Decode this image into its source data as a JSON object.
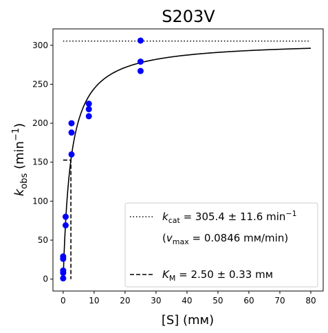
{
  "chart_data": {
    "type": "scatter",
    "title": "S203V",
    "xlabel": "[S] (mм)",
    "ylabel_main": "k",
    "ylabel_sub": "obs",
    "ylabel_unit_prefix": " (min",
    "ylabel_unit_sup": "−1",
    "ylabel_unit_suffix": ")",
    "xlim": [
      -3.3,
      84.0
    ],
    "ylim": [
      -15.3,
      321.0
    ],
    "xticks": [
      0,
      10,
      20,
      30,
      40,
      50,
      60,
      70,
      80
    ],
    "yticks": [
      0,
      50,
      100,
      150,
      200,
      250,
      300
    ],
    "grid": false,
    "legend_position": "lower right",
    "points_color": "#0000ff",
    "points": [
      {
        "x": 0,
        "y": 1
      },
      {
        "x": 0,
        "y": 8
      },
      {
        "x": 0,
        "y": 11
      },
      {
        "x": 0,
        "y": 26
      },
      {
        "x": 0,
        "y": 29
      },
      {
        "x": 0.8,
        "y": 69
      },
      {
        "x": 0.8,
        "y": 80
      },
      {
        "x": 2.7,
        "y": 160
      },
      {
        "x": 2.7,
        "y": 188
      },
      {
        "x": 2.7,
        "y": 200
      },
      {
        "x": 8.3,
        "y": 209
      },
      {
        "x": 8.3,
        "y": 218
      },
      {
        "x": 8.3,
        "y": 225
      },
      {
        "x": 25,
        "y": 267
      },
      {
        "x": 25,
        "y": 279
      },
      {
        "x": 25,
        "y": 306
      }
    ],
    "fit": {
      "model": "michaelis-menten",
      "kcat": 305.4,
      "km": 2.5,
      "x_range": [
        0,
        80
      ],
      "color": "#000000"
    },
    "kcat_line": {
      "y": 305.4,
      "x_range": [
        0,
        80
      ],
      "style": "dotted"
    },
    "km_line": {
      "x": 2.5,
      "y": 152.7,
      "x_start": 0,
      "style": "dashed"
    },
    "legend": {
      "kcat_main": "k",
      "kcat_sub": "cat",
      "kcat_text": " = 305.4 ± 11.6 min",
      "kcat_sup": "−1",
      "vmax_open": "(",
      "vmax_main": "v",
      "vmax_sub": "max",
      "vmax_text": " = 0.0846 mм/min)",
      "km_main": "K",
      "km_sub": "M",
      "km_text": " = 2.50 ± 0.33 mм"
    }
  }
}
